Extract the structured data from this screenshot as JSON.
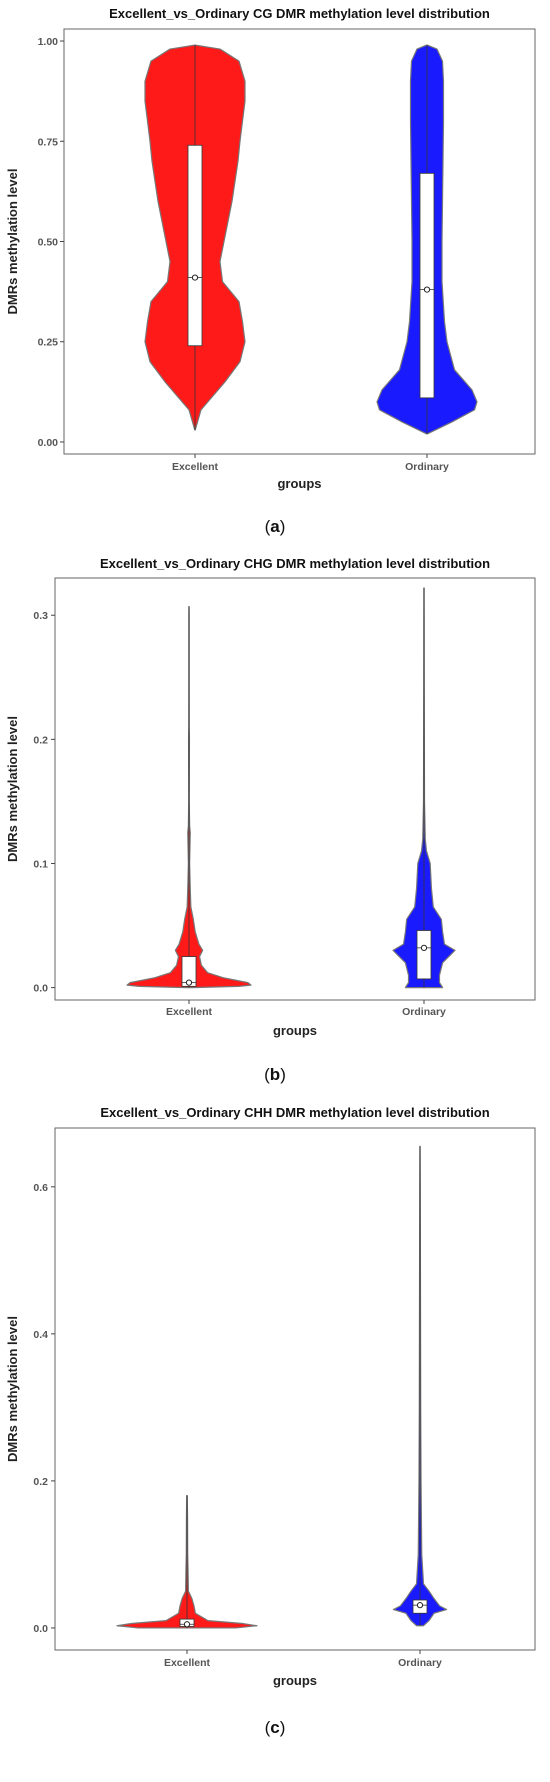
{
  "chart_data": [
    {
      "type": "violin",
      "title": "Excellent_vs_Ordinary  CG  DMR methylation level  distribution",
      "xlabel": "groups",
      "ylabel": "DMRs  methylation  level",
      "caption": "a",
      "categories": [
        "Excellent",
        "Ordinary"
      ],
      "yticks": [
        "0.00",
        "0.25",
        "0.50",
        "0.75",
        "1.00"
      ],
      "ylim": [
        -0.03,
        1.03
      ],
      "grid": false,
      "legend": "none",
      "series": [
        {
          "category": "Excellent",
          "color": "#ff1a1a",
          "min": 0.03,
          "q1": 0.24,
          "median": 0.41,
          "q3": 0.74,
          "max": 0.99,
          "density": [
            [
              0.03,
              0.005
            ],
            [
              0.08,
              0.12
            ],
            [
              0.15,
              0.6
            ],
            [
              0.2,
              0.9
            ],
            [
              0.25,
              1.0
            ],
            [
              0.3,
              0.95
            ],
            [
              0.35,
              0.88
            ],
            [
              0.4,
              0.55
            ],
            [
              0.45,
              0.5
            ],
            [
              0.5,
              0.58
            ],
            [
              0.55,
              0.66
            ],
            [
              0.6,
              0.74
            ],
            [
              0.65,
              0.8
            ],
            [
              0.7,
              0.86
            ],
            [
              0.75,
              0.9
            ],
            [
              0.8,
              0.95
            ],
            [
              0.85,
              1.0
            ],
            [
              0.9,
              1.0
            ],
            [
              0.95,
              0.88
            ],
            [
              0.98,
              0.5
            ],
            [
              0.99,
              0.005
            ]
          ]
        },
        {
          "category": "Ordinary",
          "color": "#1a1aff",
          "min": 0.02,
          "q1": 0.11,
          "median": 0.38,
          "q3": 0.67,
          "max": 0.99,
          "density": [
            [
              0.02,
              0.005
            ],
            [
              0.05,
              0.5
            ],
            [
              0.08,
              0.95
            ],
            [
              0.1,
              1.0
            ],
            [
              0.13,
              0.9
            ],
            [
              0.18,
              0.55
            ],
            [
              0.25,
              0.4
            ],
            [
              0.3,
              0.35
            ],
            [
              0.4,
              0.3
            ],
            [
              0.5,
              0.3
            ],
            [
              0.6,
              0.31
            ],
            [
              0.7,
              0.32
            ],
            [
              0.8,
              0.33
            ],
            [
              0.9,
              0.33
            ],
            [
              0.95,
              0.31
            ],
            [
              0.98,
              0.2
            ],
            [
              0.99,
              0.005
            ]
          ]
        }
      ]
    },
    {
      "type": "violin",
      "title": "Excellent_vs_Ordinary  CHG  DMR methylation level  distribution",
      "xlabel": "groups",
      "ylabel": "DMRs  methylation  level",
      "caption": "b",
      "categories": [
        "Excellent",
        "Ordinary"
      ],
      "yticks": [
        "0.0",
        "0.1",
        "0.2",
        "0.3"
      ],
      "ylim": [
        -0.01,
        0.33
      ],
      "grid": false,
      "legend": "none",
      "series": [
        {
          "category": "Excellent",
          "color": "#ff1a1a",
          "min": 0.0,
          "q1": 0.001,
          "median": 0.004,
          "q3": 0.025,
          "max": 0.307,
          "density": [
            [
              0.0,
              0.05
            ],
            [
              0.001,
              0.8
            ],
            [
              0.002,
              1.0
            ],
            [
              0.004,
              0.95
            ],
            [
              0.008,
              0.55
            ],
            [
              0.012,
              0.3
            ],
            [
              0.018,
              0.2
            ],
            [
              0.025,
              0.17
            ],
            [
              0.03,
              0.22
            ],
            [
              0.035,
              0.16
            ],
            [
              0.045,
              0.1
            ],
            [
              0.055,
              0.07
            ],
            [
              0.065,
              0.03
            ],
            [
              0.08,
              0.02
            ],
            [
              0.1,
              0.01
            ],
            [
              0.125,
              0.02
            ],
            [
              0.13,
              0.01
            ],
            [
              0.15,
              0.005
            ],
            [
              0.2,
              0.007
            ],
            [
              0.21,
              0.004
            ],
            [
              0.25,
              0.003
            ],
            [
              0.3,
              0.003
            ],
            [
              0.307,
              0.002
            ]
          ]
        },
        {
          "category": "Ordinary",
          "color": "#1a1aff",
          "min": 0.0,
          "q1": 0.007,
          "median": 0.032,
          "q3": 0.046,
          "max": 0.322,
          "density": [
            [
              0.0,
              0.3
            ],
            [
              0.004,
              0.25
            ],
            [
              0.01,
              0.25
            ],
            [
              0.02,
              0.3
            ],
            [
              0.03,
              0.5
            ],
            [
              0.035,
              0.33
            ],
            [
              0.045,
              0.3
            ],
            [
              0.055,
              0.28
            ],
            [
              0.065,
              0.15
            ],
            [
              0.08,
              0.12
            ],
            [
              0.1,
              0.1
            ],
            [
              0.11,
              0.04
            ],
            [
              0.12,
              0.02
            ],
            [
              0.15,
              0.008
            ],
            [
              0.2,
              0.006
            ],
            [
              0.25,
              0.004
            ],
            [
              0.3,
              0.003
            ],
            [
              0.322,
              0.002
            ]
          ]
        }
      ]
    },
    {
      "type": "violin",
      "title": "Excellent_vs_Ordinary  CHH  DMR methylation level  distribution",
      "xlabel": "groups",
      "ylabel": "DMRs  methylation  level",
      "caption": "c",
      "categories": [
        "Excellent",
        "Ordinary"
      ],
      "yticks": [
        "0.0",
        "0.2",
        "0.4",
        "0.6"
      ],
      "ylim": [
        -0.03,
        0.68
      ],
      "grid": false,
      "legend": "none",
      "series": [
        {
          "category": "Excellent",
          "color": "#ff1a1a",
          "min": 0.0,
          "q1": 0.002,
          "median": 0.005,
          "q3": 0.012,
          "max": 0.18,
          "density": [
            [
              0.0,
              0.7
            ],
            [
              0.003,
              1.0
            ],
            [
              0.006,
              0.8
            ],
            [
              0.01,
              0.3
            ],
            [
              0.02,
              0.12
            ],
            [
              0.03,
              0.1
            ],
            [
              0.04,
              0.07
            ],
            [
              0.05,
              0.02
            ],
            [
              0.08,
              0.015
            ],
            [
              0.1,
              0.01
            ],
            [
              0.15,
              0.008
            ],
            [
              0.18,
              0.004
            ]
          ]
        },
        {
          "category": "Ordinary",
          "color": "#1a1aff",
          "min": 0.003,
          "q1": 0.02,
          "median": 0.031,
          "q3": 0.038,
          "max": 0.655,
          "density": [
            [
              0.003,
              0.05
            ],
            [
              0.01,
              0.13
            ],
            [
              0.02,
              0.2
            ],
            [
              0.025,
              0.38
            ],
            [
              0.03,
              0.28
            ],
            [
              0.04,
              0.2
            ],
            [
              0.05,
              0.13
            ],
            [
              0.06,
              0.05
            ],
            [
              0.1,
              0.025
            ],
            [
              0.2,
              0.015
            ],
            [
              0.3,
              0.01
            ],
            [
              0.4,
              0.008
            ],
            [
              0.5,
              0.006
            ],
            [
              0.6,
              0.004
            ],
            [
              0.655,
              0.002
            ]
          ]
        }
      ]
    }
  ]
}
